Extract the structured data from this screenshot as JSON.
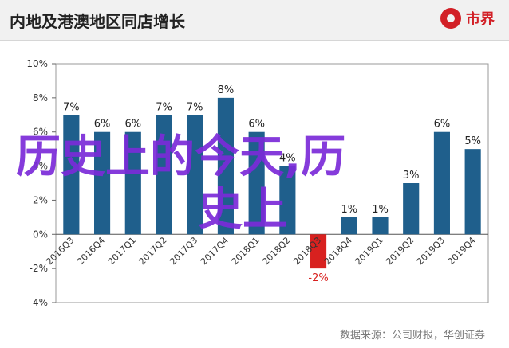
{
  "header": {
    "title": "内地及港澳地区同店增长",
    "logo_text": "市界"
  },
  "overlay": {
    "line1": "历史上的今天,历",
    "line2": "史上"
  },
  "source": "数据来源：公司财报，华创证券",
  "colors": {
    "bar": "#1f5f8c",
    "negative_bar": "#d8211f",
    "negative_label": "#d8211f",
    "overlay": "#7b2bd8"
  },
  "chart_data": {
    "type": "bar",
    "categories": [
      "2016Q3",
      "2016Q4",
      "2017Q1",
      "2017Q2",
      "2017Q3",
      "2017Q4",
      "2018Q1",
      "2018Q2",
      "2018Q3",
      "2018Q4",
      "2019Q1",
      "2019Q2",
      "2019Q3",
      "2019Q4"
    ],
    "values": [
      7,
      6,
      6,
      7,
      7,
      8,
      6,
      4,
      -2,
      1,
      1,
      3,
      6,
      5
    ],
    "data_labels": [
      "7%",
      "6%",
      "6%",
      "7%",
      "7%",
      "8%",
      "6%",
      "4%",
      "-2%",
      "1%",
      "1%",
      "3%",
      "6%",
      "5%"
    ],
    "ylim": [
      -4,
      10
    ],
    "yticks": [
      "-4%",
      "-2%",
      "0%",
      "2%",
      "4%",
      "6%",
      "8%",
      "10%"
    ],
    "ytick_values": [
      -4,
      -2,
      0,
      2,
      4,
      6,
      8,
      10
    ],
    "grid": false
  }
}
